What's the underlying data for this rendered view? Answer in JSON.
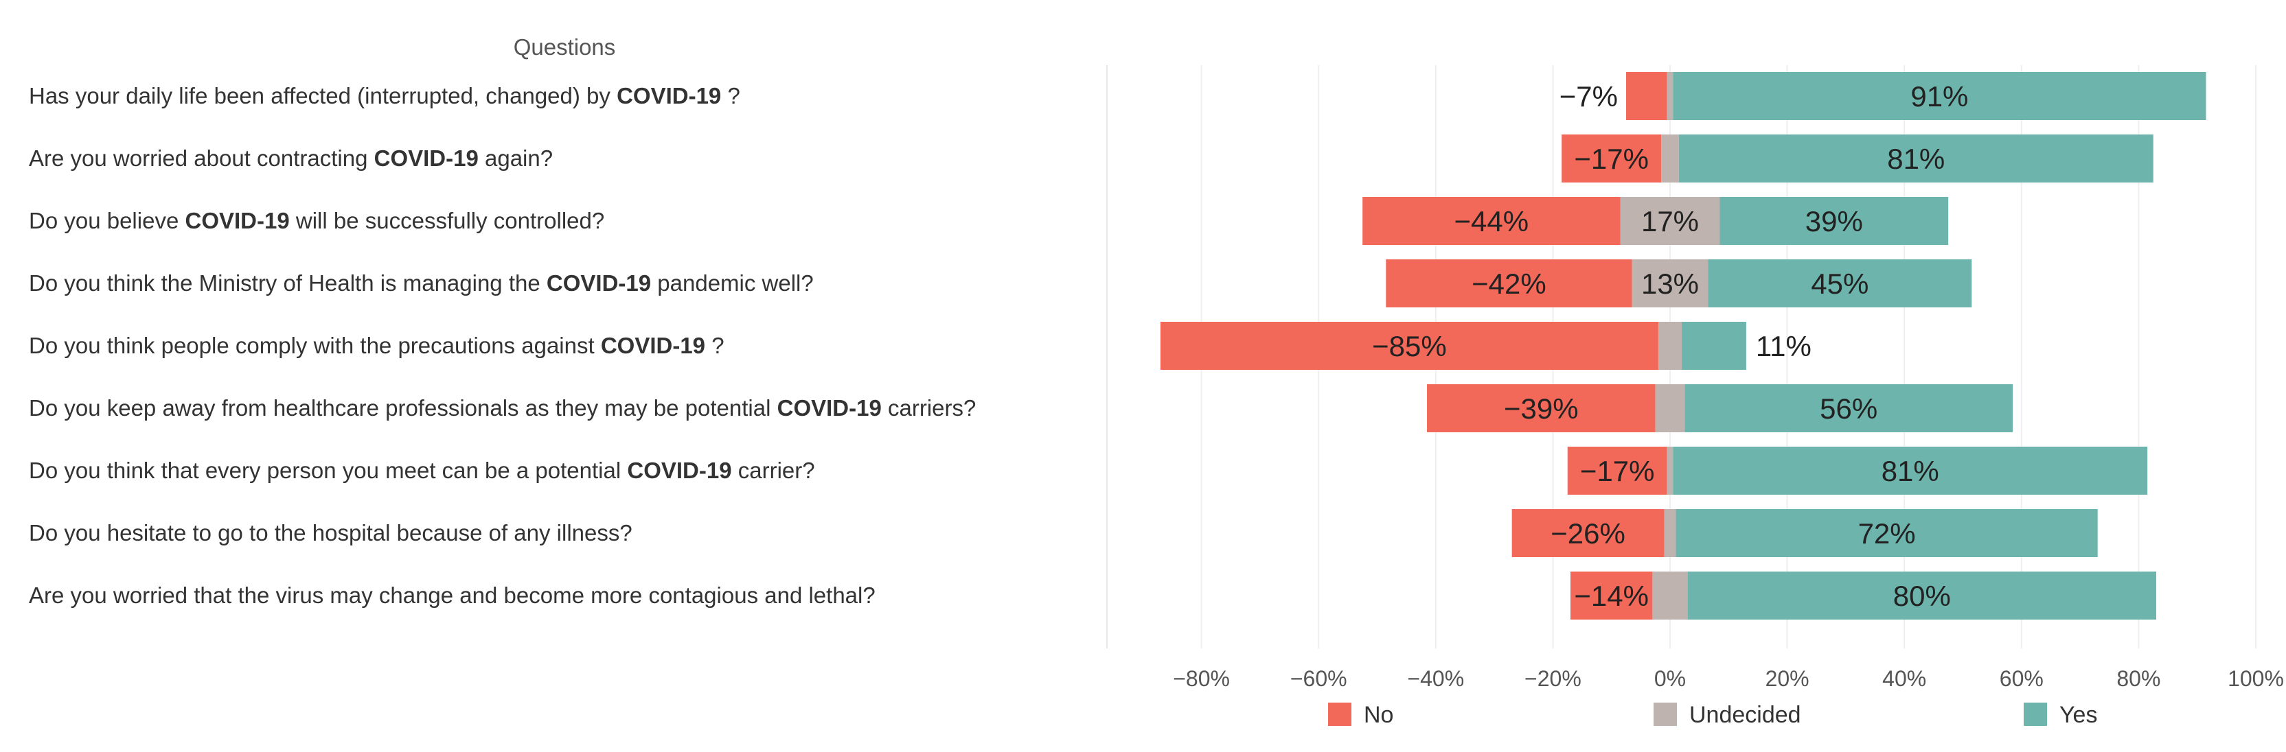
{
  "chart_data": {
    "type": "bar",
    "stacking": "diverging",
    "header": "Questions",
    "categories": [
      {
        "pre": "Has your daily life been affected (interrupted, changed) by ",
        "bold": "COVID-19",
        "post": " ?"
      },
      {
        "pre": "Are you worried about contracting ",
        "bold": "COVID-19",
        "post": " again?"
      },
      {
        "pre": "Do you believe ",
        "bold": "COVID-19",
        "post": " will be successfully controlled?"
      },
      {
        "pre": "Do you think the Ministry of Health is managing the ",
        "bold": "COVID-19",
        "post": " pandemic well?"
      },
      {
        "pre": "Do you think people comply with the precautions against ",
        "bold": "COVID-19",
        "post": " ?"
      },
      {
        "pre": "Do you keep away from healthcare professionals as they may be potential ",
        "bold": "COVID-19",
        "post": " carriers?"
      },
      {
        "pre": "Do you think that every person you meet can be a potential ",
        "bold": "COVID-19",
        "post": " carrier?"
      },
      {
        "pre": "Do you hesitate to go to the hospital because of any illness?",
        "bold": "",
        "post": ""
      },
      {
        "pre": "Are you worried that the virus may change and become more contagious and lethal?",
        "bold": "",
        "post": ""
      }
    ],
    "series": [
      {
        "name": "No",
        "color": "#F2695A",
        "values": [
          -7,
          -17,
          -44,
          -42,
          -85,
          -39,
          -17,
          -26,
          -14
        ],
        "labels": [
          "-7%",
          "-17%",
          "-44%",
          "-42%",
          "-85%",
          "-39%",
          "-17%",
          "-26%",
          "-14%"
        ]
      },
      {
        "name": "Undecided",
        "color": "#BFB3AF",
        "values": [
          1,
          3,
          17,
          13,
          4,
          5,
          1,
          2,
          6
        ],
        "labels": [
          "",
          "",
          "17%",
          "13%",
          "",
          "",
          "",
          "",
          ""
        ]
      },
      {
        "name": "Yes",
        "color": "#6DB5AC",
        "values": [
          91,
          81,
          39,
          45,
          11,
          56,
          81,
          72,
          80
        ],
        "labels": [
          "91%",
          "81%",
          "39%",
          "45%",
          "11%",
          "56%",
          "81%",
          "72%",
          "80%"
        ]
      }
    ],
    "xlim": [
      -100,
      100
    ],
    "xticks": [
      {
        "value": -80,
        "label": "-80%"
      },
      {
        "value": -60,
        "label": "-60%"
      },
      {
        "value": -40,
        "label": "-40%"
      },
      {
        "value": -20,
        "label": "-20%"
      },
      {
        "value": 0,
        "label": "0%"
      },
      {
        "value": 20,
        "label": "20%"
      },
      {
        "value": 40,
        "label": "40%"
      },
      {
        "value": 60,
        "label": "60%"
      },
      {
        "value": 80,
        "label": "80%"
      },
      {
        "value": 100,
        "label": "100%"
      }
    ],
    "legend": [
      {
        "name": "No",
        "color": "#F2695A"
      },
      {
        "name": "Undecided",
        "color": "#BFB3AF"
      },
      {
        "name": "Yes",
        "color": "#6DB5AC"
      }
    ],
    "legend_position": "bottom",
    "grid": true
  }
}
